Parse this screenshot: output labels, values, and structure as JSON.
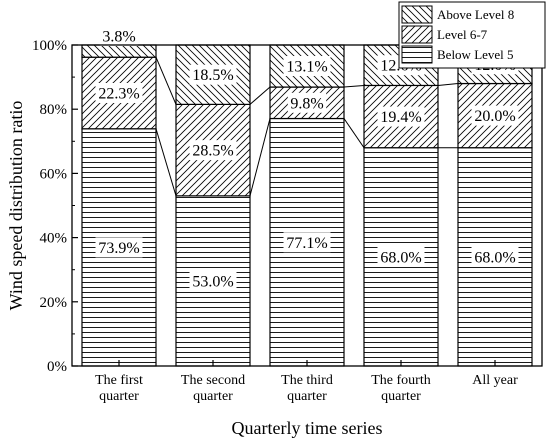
{
  "chart_data": {
    "type": "bar",
    "stacked": true,
    "title": "",
    "xlabel": "Quarterly time series",
    "ylabel": "Wind speed distribution ratio",
    "ylim": [
      0,
      100
    ],
    "yticks": [
      "0%",
      "20%",
      "40%",
      "60%",
      "80%",
      "100%"
    ],
    "categories": [
      [
        "The first",
        "quarter"
      ],
      [
        "The second",
        "quarter"
      ],
      [
        "The third",
        "quarter"
      ],
      [
        "The fourth",
        "quarter"
      ],
      [
        "All year"
      ]
    ],
    "series": [
      {
        "name": "Below Level 5",
        "pattern": "horizontal",
        "values": [
          73.9,
          53.0,
          77.1,
          68.0,
          68.0
        ],
        "labels": [
          "73.9%",
          "53.0%",
          "77.1%",
          "68.0%",
          "68.0%"
        ]
      },
      {
        "name": "Level 6-7",
        "pattern": "forward-diagonal",
        "values": [
          22.3,
          28.5,
          9.8,
          19.4,
          20.0
        ],
        "labels": [
          "22.3%",
          "28.5%",
          "9.8%",
          "19.4%",
          "20.0%"
        ]
      },
      {
        "name": "Above Level 8",
        "pattern": "back-diagonal",
        "values": [
          3.8,
          18.5,
          13.1,
          12.6,
          12.0
        ],
        "labels": [
          "3.8%",
          "18.5%",
          "13.1%",
          "12.6%",
          "12.0%"
        ]
      }
    ],
    "legend": {
      "position": "top-right",
      "order": [
        "Above Level 8",
        "Level 6-7",
        "Below Level 5"
      ]
    },
    "series_lines": true,
    "grid": false,
    "colors": {
      "stroke": "#000000",
      "fill": "#ffffff"
    }
  }
}
